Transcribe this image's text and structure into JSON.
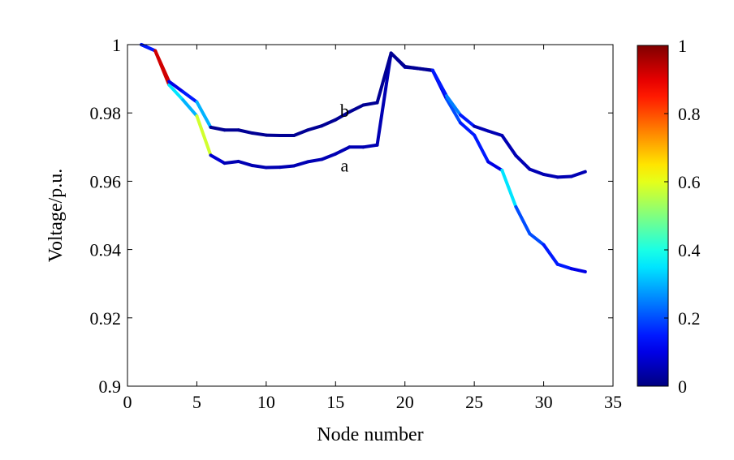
{
  "chart_data": {
    "type": "line",
    "title": "",
    "xlabel": "Node number",
    "ylabel": "Voltage/p.u.",
    "xlim": [
      0,
      35
    ],
    "ylim": [
      0.9,
      1.0
    ],
    "xticks": [
      0,
      5,
      10,
      15,
      20,
      25,
      30,
      35
    ],
    "xtick_labels": [
      "0",
      "5",
      "10",
      "15",
      "20",
      "25",
      "30",
      "35"
    ],
    "yticks": [
      0.9,
      0.92,
      0.94,
      0.96,
      0.98,
      1.0
    ],
    "ytick_labels": [
      "0.9",
      "0.92",
      "0.94",
      "0.96",
      "0.98",
      "1"
    ],
    "grid": false,
    "colormap": "jet",
    "colorbar": {
      "range": [
        0,
        1
      ],
      "ticks": [
        0,
        0.2,
        0.4,
        0.6,
        0.8,
        1
      ],
      "tick_labels": [
        "0",
        "0.2",
        "0.4",
        "0.6",
        "0.8",
        "1"
      ]
    },
    "series": [
      {
        "label": "a",
        "x": [
          1,
          2,
          3,
          4,
          5,
          6,
          7,
          8,
          9,
          10,
          11,
          12,
          13,
          14,
          15,
          16,
          17,
          18,
          19,
          20,
          21,
          22,
          23,
          24,
          25,
          26,
          27,
          28,
          29,
          30,
          31,
          32,
          33
        ],
        "y": [
          1.0,
          0.9982,
          0.9882,
          0.9838,
          0.9791,
          0.9676,
          0.9653,
          0.9658,
          0.9646,
          0.964,
          0.9641,
          0.9645,
          0.9657,
          0.9664,
          0.968,
          0.97,
          0.97,
          0.9706,
          0.9975,
          0.9934,
          0.993,
          0.9924,
          0.9841,
          0.9771,
          0.9735,
          0.9657,
          0.9632,
          0.9525,
          0.9446,
          0.9414,
          0.9357,
          0.9344,
          0.9335
        ],
        "segment_colors": [
          0.15,
          0.92,
          0.35,
          0.3,
          0.58,
          0.08,
          0.05,
          0.05,
          0.05,
          0.05,
          0.05,
          0.05,
          0.05,
          0.05,
          0.05,
          0.05,
          0.05,
          0.05,
          0.05,
          0.05,
          0.05,
          0.1,
          0.2,
          0.15,
          0.15,
          0.1,
          0.35,
          0.2,
          0.2,
          0.15,
          0.15,
          0.1
        ]
      },
      {
        "label": "b",
        "x": [
          1,
          2,
          3,
          4,
          5,
          6,
          7,
          8,
          9,
          10,
          11,
          12,
          13,
          14,
          15,
          16,
          17,
          18,
          19,
          20,
          21,
          22,
          23,
          24,
          25,
          26,
          27,
          28,
          29,
          30,
          31,
          32,
          33
        ],
        "y": [
          1.0,
          0.9982,
          0.9892,
          0.9862,
          0.9832,
          0.9758,
          0.975,
          0.975,
          0.9741,
          0.9735,
          0.9734,
          0.9734,
          0.975,
          0.9762,
          0.978,
          0.9803,
          0.9823,
          0.983,
          0.9975,
          0.9936,
          0.993,
          0.9925,
          0.985,
          0.9794,
          0.9761,
          0.9747,
          0.9734,
          0.9675,
          0.9635,
          0.962,
          0.9612,
          0.9614,
          0.9628
        ],
        "segment_colors": [
          0.15,
          0.92,
          0.1,
          0.15,
          0.3,
          0.02,
          0.02,
          0.02,
          0.02,
          0.02,
          0.02,
          0.02,
          0.02,
          0.02,
          0.02,
          0.02,
          0.02,
          0.02,
          0.02,
          0.02,
          0.02,
          0.15,
          0.25,
          0.15,
          0.05,
          0.05,
          0.05,
          0.05,
          0.05,
          0.05,
          0.05,
          0.05
        ]
      }
    ]
  }
}
